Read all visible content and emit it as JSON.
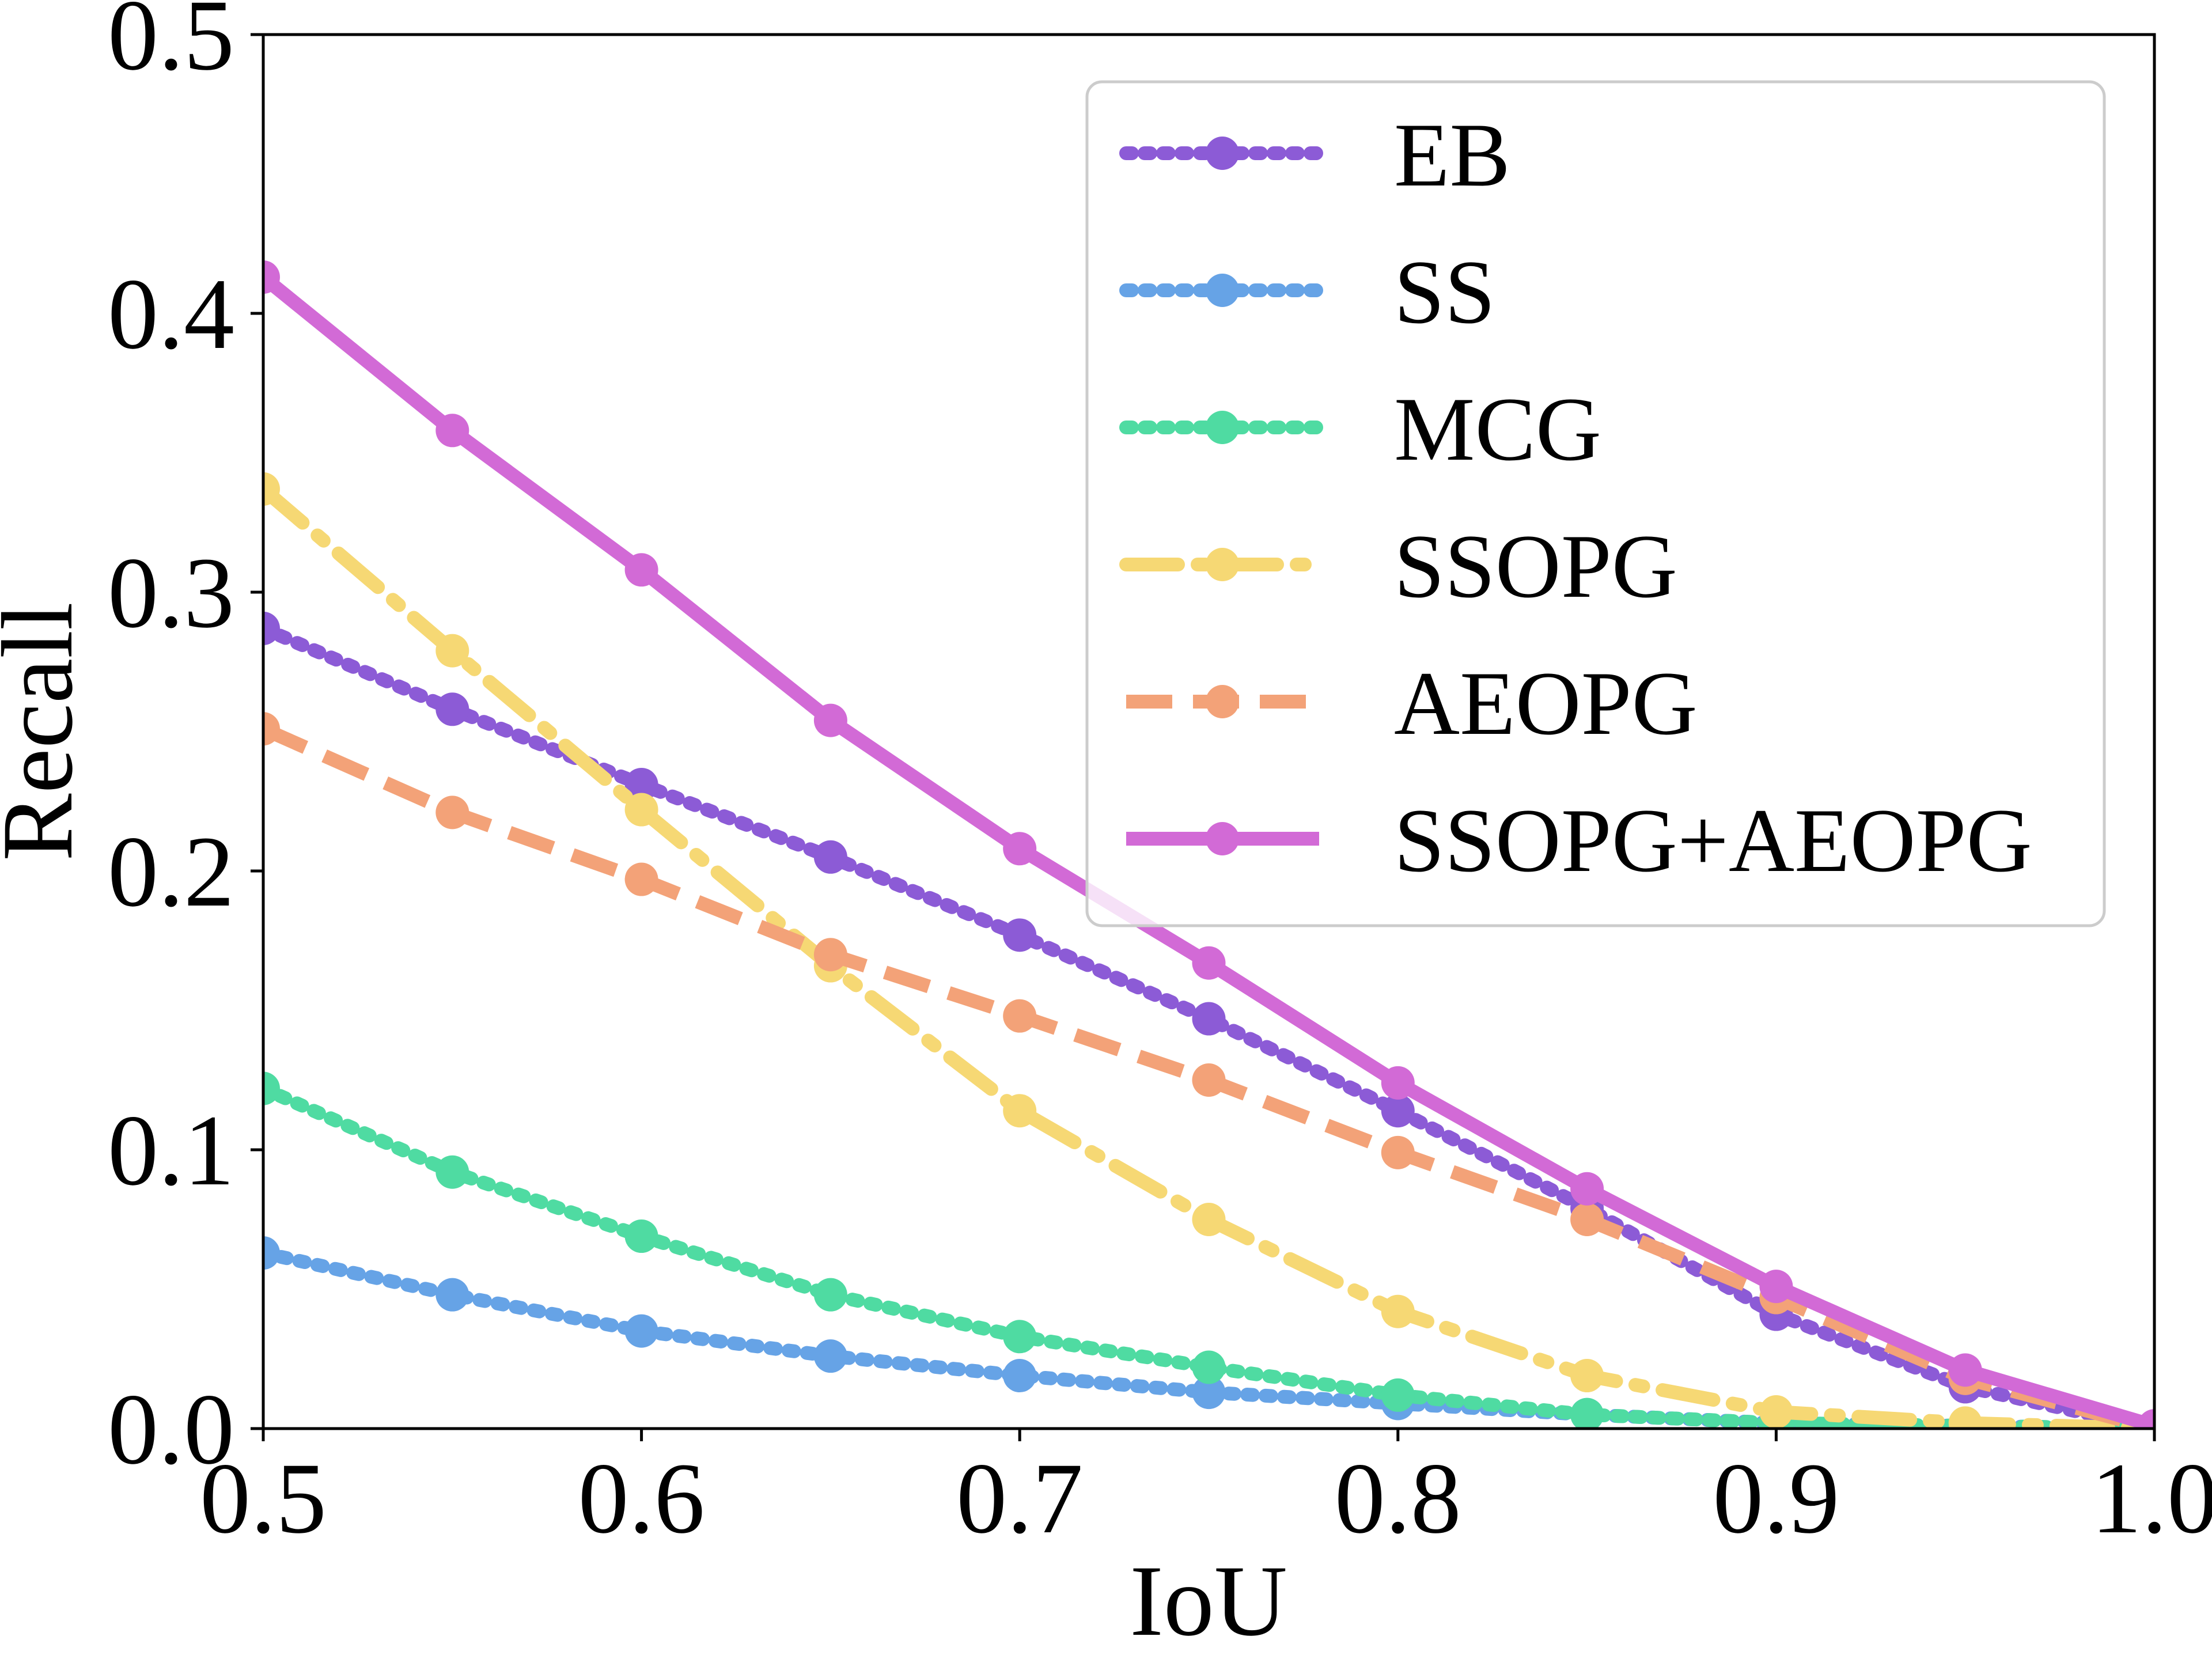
{
  "chart_data": {
    "type": "line",
    "title": "",
    "xlabel": "IoU",
    "ylabel": "Recall",
    "xlim": [
      0.5,
      1.0
    ],
    "ylim": [
      0.0,
      0.5
    ],
    "xticks": [
      "0.5",
      "0.6",
      "0.7",
      "0.8",
      "0.9",
      "1.0"
    ],
    "yticks": [
      "0.0",
      "0.1",
      "0.2",
      "0.3",
      "0.4",
      "0.5"
    ],
    "grid": false,
    "legend_position": "top-right",
    "x": [
      0.5,
      0.55,
      0.6,
      0.65,
      0.7,
      0.75,
      0.8,
      0.85,
      0.9,
      0.95,
      1.0
    ],
    "series": [
      {
        "name": "EB",
        "color": "#8c5bd6",
        "style": "dotted",
        "values": [
          0.287,
          0.258,
          0.231,
          0.205,
          0.177,
          0.147,
          0.114,
          0.079,
          0.041,
          0.015,
          0.0
        ]
      },
      {
        "name": "SS",
        "color": "#66a3e6",
        "style": "dotted",
        "values": [
          0.063,
          0.048,
          0.035,
          0.026,
          0.019,
          0.013,
          0.009,
          0.005,
          0.002,
          0.001,
          0.0
        ]
      },
      {
        "name": "MCG",
        "color": "#4fdba2",
        "style": "dotted",
        "values": [
          0.122,
          0.092,
          0.069,
          0.048,
          0.033,
          0.022,
          0.012,
          0.005,
          0.002,
          0.001,
          0.0
        ]
      },
      {
        "name": "SSOPG",
        "color": "#f6d874",
        "style": "dashdot",
        "values": [
          0.337,
          0.279,
          0.222,
          0.166,
          0.114,
          0.075,
          0.042,
          0.019,
          0.006,
          0.002,
          0.0
        ]
      },
      {
        "name": "AEOPG",
        "color": "#f3a278",
        "style": "dashed",
        "values": [
          0.251,
          0.221,
          0.197,
          0.17,
          0.148,
          0.125,
          0.099,
          0.075,
          0.047,
          0.018,
          0.0
        ]
      },
      {
        "name": "SSOPG+AEOPG",
        "color": "#d26ad6",
        "style": "solid",
        "values": [
          0.413,
          0.358,
          0.308,
          0.254,
          0.208,
          0.167,
          0.124,
          0.086,
          0.051,
          0.021,
          0.001
        ]
      }
    ]
  }
}
